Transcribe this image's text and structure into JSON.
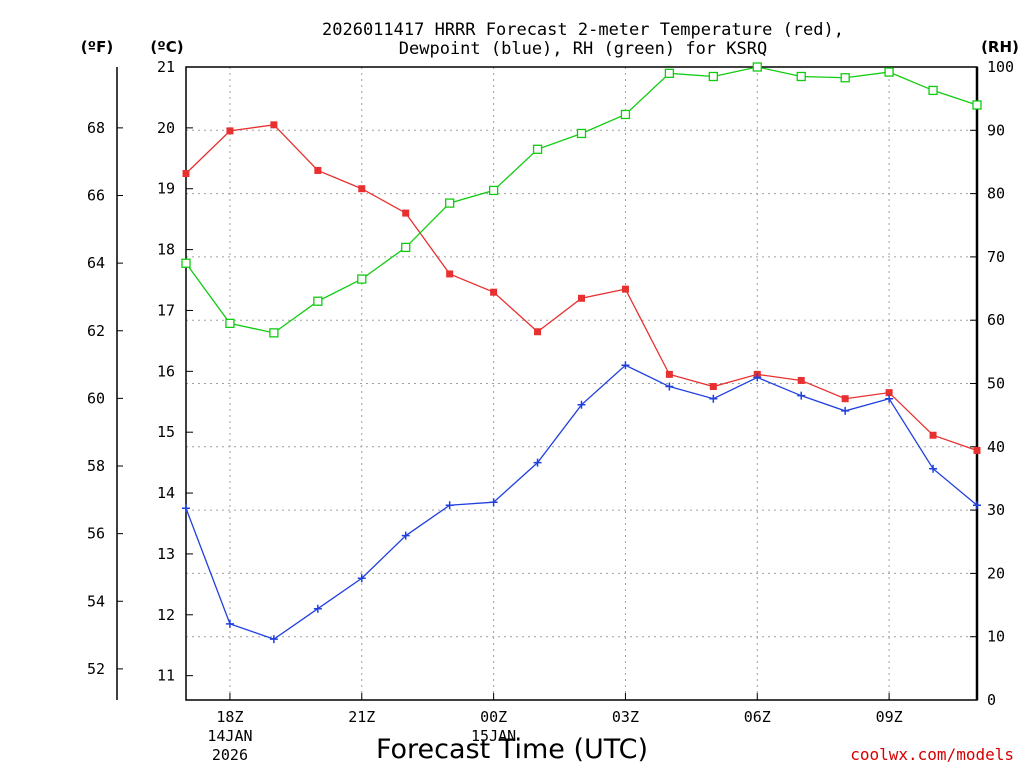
{
  "chart_data": {
    "type": "line",
    "title_lines": [
      "2026011417 HRRR Forecast 2-meter Temperature (red),",
      "Dewpoint (blue), RH (green) for KSRQ"
    ],
    "unit_f": "(ºF)",
    "unit_c": "(ºC)",
    "unit_rh": "(RH)",
    "xlabel": "Forecast Time (UTC)",
    "credit": "coolwx.com/models",
    "x_tick_labels": [
      {
        "hour": 1,
        "lines": [
          "18Z",
          "14JAN",
          "2026"
        ]
      },
      {
        "hour": 4,
        "lines": [
          "21Z"
        ]
      },
      {
        "hour": 7,
        "lines": [
          "00Z",
          "15JAN"
        ]
      },
      {
        "hour": 10,
        "lines": [
          "03Z"
        ]
      },
      {
        "hour": 13,
        "lines": [
          "06Z"
        ]
      },
      {
        "hour": 16,
        "lines": [
          "09Z"
        ]
      }
    ],
    "x_range": [
      0,
      18
    ],
    "celsius_axis": {
      "range": [
        10.6,
        21
      ],
      "ticks": [
        "11",
        "12",
        "13",
        "14",
        "15",
        "16",
        "17",
        "18",
        "19",
        "20",
        "21"
      ]
    },
    "fahrenheit_axis": {
      "ticks": [
        "52",
        "54",
        "56",
        "58",
        "60",
        "62",
        "64",
        "66",
        "68"
      ]
    },
    "rh_axis": {
      "range": [
        0,
        100
      ],
      "ticks": [
        "0",
        "10",
        "20",
        "30",
        "40",
        "50",
        "60",
        "70",
        "80",
        "90",
        "100"
      ]
    },
    "series": [
      {
        "name": "Temperature",
        "axis": "c",
        "color": "#e83030",
        "marker": "square-filled",
        "values": [
          19.25,
          19.95,
          20.05,
          19.3,
          19.0,
          18.6,
          17.6,
          17.3,
          16.65,
          17.2,
          17.35,
          15.95,
          15.75,
          15.95,
          15.85,
          15.55,
          15.65,
          14.95,
          14.7
        ]
      },
      {
        "name": "Dewpoint",
        "axis": "c",
        "color": "#2040e0",
        "marker": "plus",
        "values": [
          13.75,
          11.85,
          11.6,
          12.1,
          12.6,
          13.3,
          13.8,
          13.85,
          14.5,
          15.45,
          16.1,
          15.75,
          15.55,
          15.9,
          15.6,
          15.35,
          15.55,
          14.4,
          13.8
        ]
      },
      {
        "name": "RH",
        "axis": "rh",
        "color": "#10cc10",
        "marker": "square-open",
        "values": [
          69,
          59.5,
          58,
          63,
          66.5,
          71.5,
          78.5,
          80.5,
          87,
          89.5,
          92.5,
          99,
          98.5,
          100,
          98.5,
          98.3,
          99.2,
          96.3,
          94
        ]
      }
    ]
  }
}
